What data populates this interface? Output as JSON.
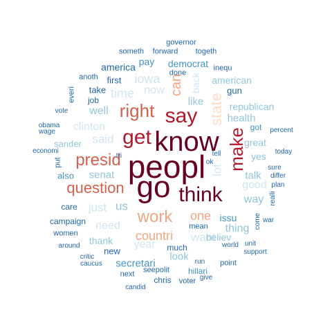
{
  "palette": {
    "darkest": "#67001f",
    "dark_red": "#b2182b",
    "orange": "#d6604d",
    "salmon": "#f4a582",
    "peach": "#fddbc7",
    "light_blue": "#d1e5f0",
    "mid_light_blue": "#92c5de",
    "mid_blue": "#4393c3",
    "dark_blue": "#2166ac"
  },
  "words": [
    {
      "text": "peopl",
      "color": "#67001f",
      "rotated": false
    },
    {
      "text": "know",
      "color": "#67001f",
      "rotated": false
    },
    {
      "text": "go",
      "color": "#67001f",
      "rotated": false
    },
    {
      "text": "think",
      "color": "#67001f",
      "rotated": false
    },
    {
      "text": "get",
      "color": "#b2182b",
      "rotated": false
    },
    {
      "text": "say",
      "color": "#b2182b",
      "rotated": false
    },
    {
      "text": "make",
      "color": "#b2182b",
      "rotated": true
    },
    {
      "text": "right",
      "color": "#d6604d",
      "rotated": false
    },
    {
      "text": "presid",
      "color": "#d6604d",
      "rotated": false
    },
    {
      "text": "question",
      "color": "#d6604d",
      "rotated": false
    },
    {
      "text": "work",
      "color": "#f4a582",
      "rotated": false
    },
    {
      "text": "countri",
      "color": "#f4a582",
      "rotated": false
    },
    {
      "text": "one",
      "color": "#f4a582",
      "rotated": false
    },
    {
      "text": "state",
      "color": "#fddbc7",
      "rotated": true
    },
    {
      "text": "can",
      "color": "#f4a582",
      "rotated": true
    },
    {
      "text": "iowa",
      "color": "#d1e5f0",
      "rotated": false
    },
    {
      "text": "now",
      "color": "#d1e5f0",
      "rotated": false
    },
    {
      "text": "time",
      "color": "#d1e5f0",
      "rotated": false
    },
    {
      "text": "clinton",
      "color": "#d1e5f0",
      "rotated": false
    },
    {
      "text": "said",
      "color": "#d1e5f0",
      "rotated": false
    },
    {
      "text": "want",
      "color": "#d1e5f0",
      "rotated": false
    },
    {
      "text": "year",
      "color": "#d1e5f0",
      "rotated": false
    },
    {
      "text": "good",
      "color": "#d1e5f0",
      "rotated": false
    },
    {
      "text": "just",
      "color": "#d1e5f0",
      "rotated": false
    },
    {
      "text": "need",
      "color": "#d1e5f0",
      "rotated": false
    },
    {
      "text": "lot",
      "color": "#d1e5f0",
      "rotated": true
    },
    {
      "text": "back",
      "color": "#d1e5f0",
      "rotated": true
    },
    {
      "text": "well",
      "color": "#92c5de",
      "rotated": false
    },
    {
      "text": "us",
      "color": "#92c5de",
      "rotated": false
    },
    {
      "text": "thing",
      "color": "#92c5de",
      "rotated": false
    },
    {
      "text": "way",
      "color": "#92c5de",
      "rotated": false
    },
    {
      "text": "look",
      "color": "#92c5de",
      "rotated": false
    },
    {
      "text": "like",
      "color": "#92c5de",
      "rotated": false
    },
    {
      "text": "senat",
      "color": "#92c5de",
      "rotated": false
    },
    {
      "text": "sander",
      "color": "#92c5de",
      "rotated": false
    },
    {
      "text": "great",
      "color": "#92c5de",
      "rotated": false
    },
    {
      "text": "yes",
      "color": "#92c5de",
      "rotated": false
    },
    {
      "text": "talk",
      "color": "#92c5de",
      "rotated": false
    },
    {
      "text": "republican",
      "color": "#92c5de",
      "rotated": false
    },
    {
      "text": "health",
      "color": "#92c5de",
      "rotated": false
    },
    {
      "text": "believ",
      "color": "#92c5de",
      "rotated": false
    },
    {
      "text": "thank",
      "color": "#92c5de",
      "rotated": false
    },
    {
      "text": "secretari",
      "color": "#4393c3",
      "rotated": false
    },
    {
      "text": "american",
      "color": "#92c5de",
      "rotated": false
    },
    {
      "text": "issu",
      "color": "#4393c3",
      "rotated": false
    },
    {
      "text": "democrat",
      "color": "#4393c3",
      "rotated": false
    },
    {
      "text": "america",
      "color": "#2166ac",
      "rotated": false
    },
    {
      "text": "pay",
      "color": "#4393c3",
      "rotated": false
    },
    {
      "text": "first",
      "color": "#2166ac",
      "rotated": false
    },
    {
      "text": "take",
      "color": "#2166ac",
      "rotated": false
    },
    {
      "text": "job",
      "color": "#2166ac",
      "rotated": false
    },
    {
      "text": "also",
      "color": "#4393c3",
      "rotated": false
    },
    {
      "text": "care",
      "color": "#2166ac",
      "rotated": false
    },
    {
      "text": "campaign",
      "color": "#2166ac",
      "rotated": false
    },
    {
      "text": "women",
      "color": "#2166ac",
      "rotated": false
    },
    {
      "text": "new",
      "color": "#2166ac",
      "rotated": false
    },
    {
      "text": "much",
      "color": "#2166ac",
      "rotated": false
    },
    {
      "text": "mean",
      "color": "#2166ac",
      "rotated": false
    },
    {
      "text": "gun",
      "color": "#2166ac",
      "rotated": false
    },
    {
      "text": "got",
      "color": "#4393c3",
      "rotated": false
    },
    {
      "text": "hillari",
      "color": "#4393c3",
      "rotated": false
    },
    {
      "text": "chris",
      "color": "#2166ac",
      "rotated": false
    },
    {
      "text": "point",
      "color": "#2166ac",
      "rotated": false
    },
    {
      "text": "governor",
      "color": "#2166ac",
      "rotated": false
    },
    {
      "text": "someth",
      "color": "#2166ac",
      "rotated": false
    },
    {
      "text": "forward",
      "color": "#2166ac",
      "rotated": false
    },
    {
      "text": "togeth",
      "color": "#2166ac",
      "rotated": false
    },
    {
      "text": "done",
      "color": "#2166ac",
      "rotated": false
    },
    {
      "text": "inequ",
      "color": "#2166ac",
      "rotated": false
    },
    {
      "text": "anoth",
      "color": "#2166ac",
      "rotated": false
    },
    {
      "text": "vote",
      "color": "#2166ac",
      "rotated": false
    },
    {
      "text": "obama",
      "color": "#2166ac",
      "rotated": false
    },
    {
      "text": "wage",
      "color": "#2166ac",
      "rotated": false
    },
    {
      "text": "economi",
      "color": "#2166ac",
      "rotated": false
    },
    {
      "text": "percent",
      "color": "#2166ac",
      "rotated": false
    },
    {
      "text": "today",
      "color": "#2166ac",
      "rotated": false
    },
    {
      "text": "tell",
      "color": "#2166ac",
      "rotated": false
    },
    {
      "text": "ok",
      "color": "#2166ac",
      "rotated": false
    },
    {
      "text": "tri",
      "color": "#2166ac",
      "rotated": false
    },
    {
      "text": "sure",
      "color": "#2166ac",
      "rotated": false
    },
    {
      "text": "differ",
      "color": "#2166ac",
      "rotated": false
    },
    {
      "text": "plan",
      "color": "#2166ac",
      "rotated": false
    },
    {
      "text": "war",
      "color": "#2166ac",
      "rotated": false
    },
    {
      "text": "around",
      "color": "#2166ac",
      "rotated": false
    },
    {
      "text": "world",
      "color": "#2166ac",
      "rotated": false
    },
    {
      "text": "unit",
      "color": "#2166ac",
      "rotated": false
    },
    {
      "text": "support",
      "color": "#2166ac",
      "rotated": false
    },
    {
      "text": "critic",
      "color": "#2166ac",
      "rotated": false
    },
    {
      "text": "caucus",
      "color": "#2166ac",
      "rotated": false
    },
    {
      "text": "run",
      "color": "#2166ac",
      "rotated": false
    },
    {
      "text": "seepolit",
      "color": "#2166ac",
      "rotated": false
    },
    {
      "text": "next",
      "color": "#2166ac",
      "rotated": false
    },
    {
      "text": "voter",
      "color": "#2166ac",
      "rotated": false
    },
    {
      "text": "give",
      "color": "#2166ac",
      "rotated": false
    },
    {
      "text": "candid",
      "color": "#2166ac",
      "rotated": false
    },
    {
      "text": "everi",
      "color": "#2166ac",
      "rotated": true
    },
    {
      "text": "put",
      "color": "#2166ac",
      "rotated": true
    },
    {
      "text": "realli",
      "color": "#2166ac",
      "rotated": true
    },
    {
      "text": "come",
      "color": "#2166ac",
      "rotated": true
    }
  ]
}
